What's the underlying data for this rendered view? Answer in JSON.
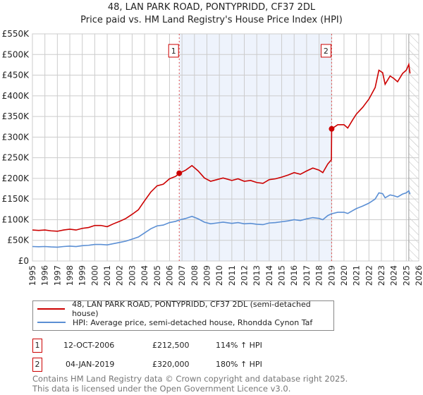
{
  "chart_data": {
    "type": "line",
    "title": "48, LAN PARK ROAD, PONTYPRIDD, CF37 2DL",
    "subtitle": "Price paid vs. HM Land Registry's House Price Index (HPI)",
    "xlim": [
      1995,
      2026
    ],
    "ylim": [
      0,
      550000
    ],
    "yticks": [
      0,
      50000,
      100000,
      150000,
      200000,
      250000,
      300000,
      350000,
      400000,
      450000,
      500000,
      550000
    ],
    "ytick_labels": [
      "£0",
      "£50K",
      "£100K",
      "£150K",
      "£200K",
      "£250K",
      "£300K",
      "£350K",
      "£400K",
      "£450K",
      "£500K",
      "£550K"
    ],
    "xticks": [
      1995,
      1996,
      1997,
      1998,
      1999,
      2000,
      2001,
      2002,
      2003,
      2004,
      2005,
      2006,
      2007,
      2008,
      2009,
      2010,
      2011,
      2012,
      2013,
      2014,
      2015,
      2016,
      2017,
      2018,
      2019,
      2020,
      2021,
      2022,
      2023,
      2024,
      2025,
      2026
    ],
    "grid": true,
    "shaded_period": [
      2006.78,
      2019.01
    ],
    "forecast_hatch_from": 2025.2,
    "series": [
      {
        "name": "48, LAN PARK ROAD, PONTYPRIDD, CF37 2DL (semi-detached house)",
        "color": "#cc0000",
        "points": [
          [
            1995,
            75000
          ],
          [
            1995.5,
            74000
          ],
          [
            1996,
            75000
          ],
          [
            1996.5,
            73000
          ],
          [
            1997,
            72000
          ],
          [
            1997.5,
            75000
          ],
          [
            1998,
            77000
          ],
          [
            1998.5,
            75000
          ],
          [
            1999,
            79000
          ],
          [
            1999.5,
            81000
          ],
          [
            2000,
            86000
          ],
          [
            2000.5,
            86000
          ],
          [
            2001,
            83000
          ],
          [
            2001.5,
            90000
          ],
          [
            2002,
            96000
          ],
          [
            2002.5,
            103000
          ],
          [
            2003,
            113000
          ],
          [
            2003.5,
            124000
          ],
          [
            2004,
            146000
          ],
          [
            2004.5,
            167000
          ],
          [
            2005,
            182000
          ],
          [
            2005.5,
            186000
          ],
          [
            2006,
            199000
          ],
          [
            2006.5,
            205000
          ],
          [
            2006.78,
            212500
          ],
          [
            2007.3,
            220000
          ],
          [
            2007.8,
            231000
          ],
          [
            2008.3,
            218000
          ],
          [
            2008.8,
            201000
          ],
          [
            2009.3,
            193000
          ],
          [
            2009.8,
            197000
          ],
          [
            2010.3,
            201000
          ],
          [
            2011,
            195000
          ],
          [
            2011.5,
            199000
          ],
          [
            2012,
            193000
          ],
          [
            2012.5,
            195000
          ],
          [
            2013,
            190000
          ],
          [
            2013.5,
            188000
          ],
          [
            2014,
            197000
          ],
          [
            2014.5,
            199000
          ],
          [
            2015,
            203000
          ],
          [
            2015.5,
            208000
          ],
          [
            2016,
            214000
          ],
          [
            2016.5,
            210000
          ],
          [
            2017,
            218000
          ],
          [
            2017.5,
            225000
          ],
          [
            2018,
            220000
          ],
          [
            2018.3,
            214000
          ],
          [
            2018.7,
            235000
          ],
          [
            2018.99,
            245000
          ],
          [
            2019.01,
            320000
          ],
          [
            2019.5,
            330000
          ],
          [
            2020,
            330000
          ],
          [
            2020.3,
            322000
          ],
          [
            2020.7,
            342000
          ],
          [
            2021,
            356000
          ],
          [
            2021.5,
            372000
          ],
          [
            2022,
            392000
          ],
          [
            2022.5,
            420000
          ],
          [
            2022.8,
            462000
          ],
          [
            2023.1,
            456000
          ],
          [
            2023.3,
            428000
          ],
          [
            2023.7,
            448000
          ],
          [
            2024,
            442000
          ],
          [
            2024.3,
            434000
          ],
          [
            2024.7,
            454000
          ],
          [
            2025,
            462000
          ],
          [
            2025.2,
            476000
          ],
          [
            2025.3,
            454000
          ]
        ]
      },
      {
        "name": "HPI: Average price, semi-detached house, Rhondda Cynon Taf",
        "color": "#5b8fd4",
        "points": [
          [
            1995,
            35000
          ],
          [
            1995.5,
            34500
          ],
          [
            1996,
            35000
          ],
          [
            1996.5,
            34000
          ],
          [
            1997,
            33500
          ],
          [
            1997.5,
            35000
          ],
          [
            1998,
            36000
          ],
          [
            1998.5,
            35000
          ],
          [
            1999,
            37000
          ],
          [
            1999.5,
            38000
          ],
          [
            2000,
            40000
          ],
          [
            2000.5,
            40000
          ],
          [
            2001,
            39000
          ],
          [
            2001.5,
            42000
          ],
          [
            2002,
            45000
          ],
          [
            2002.5,
            48000
          ],
          [
            2003,
            53000
          ],
          [
            2003.5,
            58000
          ],
          [
            2004,
            68000
          ],
          [
            2004.5,
            78000
          ],
          [
            2005,
            85000
          ],
          [
            2005.5,
            87000
          ],
          [
            2006,
            93000
          ],
          [
            2006.5,
            96000
          ],
          [
            2006.78,
            99300
          ],
          [
            2007.3,
            103000
          ],
          [
            2007.8,
            108000
          ],
          [
            2008.3,
            102000
          ],
          [
            2008.8,
            94000
          ],
          [
            2009.3,
            90000
          ],
          [
            2009.8,
            92000
          ],
          [
            2010.3,
            94000
          ],
          [
            2011,
            91000
          ],
          [
            2011.5,
            93000
          ],
          [
            2012,
            90000
          ],
          [
            2012.5,
            91000
          ],
          [
            2013,
            89000
          ],
          [
            2013.5,
            88000
          ],
          [
            2014,
            92000
          ],
          [
            2014.5,
            93000
          ],
          [
            2015,
            95000
          ],
          [
            2015.5,
            97000
          ],
          [
            2016,
            100000
          ],
          [
            2016.5,
            98000
          ],
          [
            2017,
            102000
          ],
          [
            2017.5,
            105000
          ],
          [
            2018,
            103000
          ],
          [
            2018.3,
            100000
          ],
          [
            2018.7,
            110000
          ],
          [
            2019,
            114300
          ],
          [
            2019.5,
            118000
          ],
          [
            2020,
            118000
          ],
          [
            2020.3,
            115000
          ],
          [
            2020.7,
            122000
          ],
          [
            2021,
            127000
          ],
          [
            2021.5,
            133000
          ],
          [
            2022,
            140000
          ],
          [
            2022.5,
            150000
          ],
          [
            2022.8,
            165000
          ],
          [
            2023.1,
            163000
          ],
          [
            2023.3,
            153000
          ],
          [
            2023.7,
            160000
          ],
          [
            2024,
            158000
          ],
          [
            2024.3,
            155000
          ],
          [
            2024.7,
            162000
          ],
          [
            2025,
            165000
          ],
          [
            2025.2,
            170000
          ],
          [
            2025.3,
            162000
          ]
        ]
      }
    ],
    "sales": [
      {
        "label": "1",
        "x": 2006.78,
        "price": 212500,
        "date": "12-OCT-2006",
        "price_text": "£212,500",
        "hpi_text": "114% ↑ HPI"
      },
      {
        "label": "2",
        "x": 2019.01,
        "price": 320000,
        "date": "04-JAN-2019",
        "price_text": "£320,000",
        "hpi_text": "180% ↑ HPI"
      }
    ]
  },
  "footer": {
    "line1": "Contains HM Land Registry data © Crown copyright and database right 2025.",
    "line2": "This data is licensed under the Open Government Licence v3.0."
  }
}
